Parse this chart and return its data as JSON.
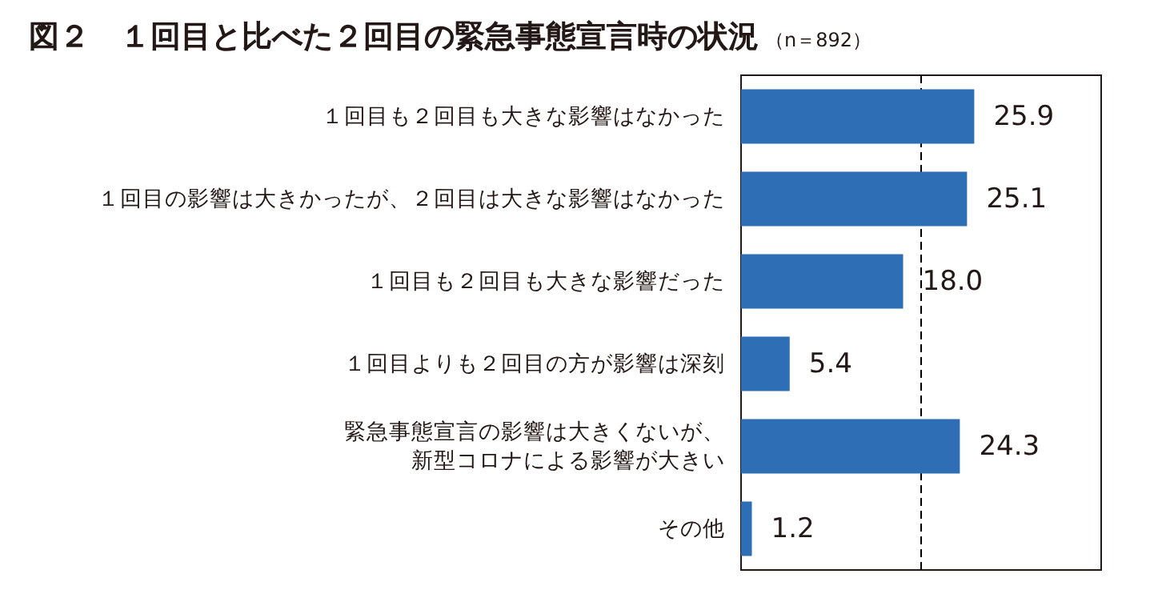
{
  "chart_data": {
    "type": "bar",
    "orientation": "horizontal",
    "title": "図２　１回目と比べた２回目の緊急事態宣言時の状況",
    "subtitle": "（n＝892）",
    "categories": [
      "１回目も２回目も大きな影響はなかった",
      "１回目の影響は大きかったが、２回目は大きな影響はなかった",
      "１回目も２回目も大きな影響だった",
      "１回目よりも２回目の方が影響は深刻",
      "緊急事態宣言の影響は大きくないが、新型コロナによる影響が大きい",
      "その他"
    ],
    "values": [
      25.9,
      25.1,
      18.0,
      5.4,
      24.3,
      1.2
    ],
    "value_labels": [
      "25.9",
      "25.1",
      "18.0",
      "5.4",
      "24.3",
      "1.2"
    ],
    "color": "#2e6eb5",
    "xlim": [
      0,
      40
    ],
    "tick_labels": "y",
    "ref_lines": [
      {
        "axis": "x",
        "value": 20,
        "line_style": "dashed",
        "color": "#000000"
      }
    ]
  }
}
